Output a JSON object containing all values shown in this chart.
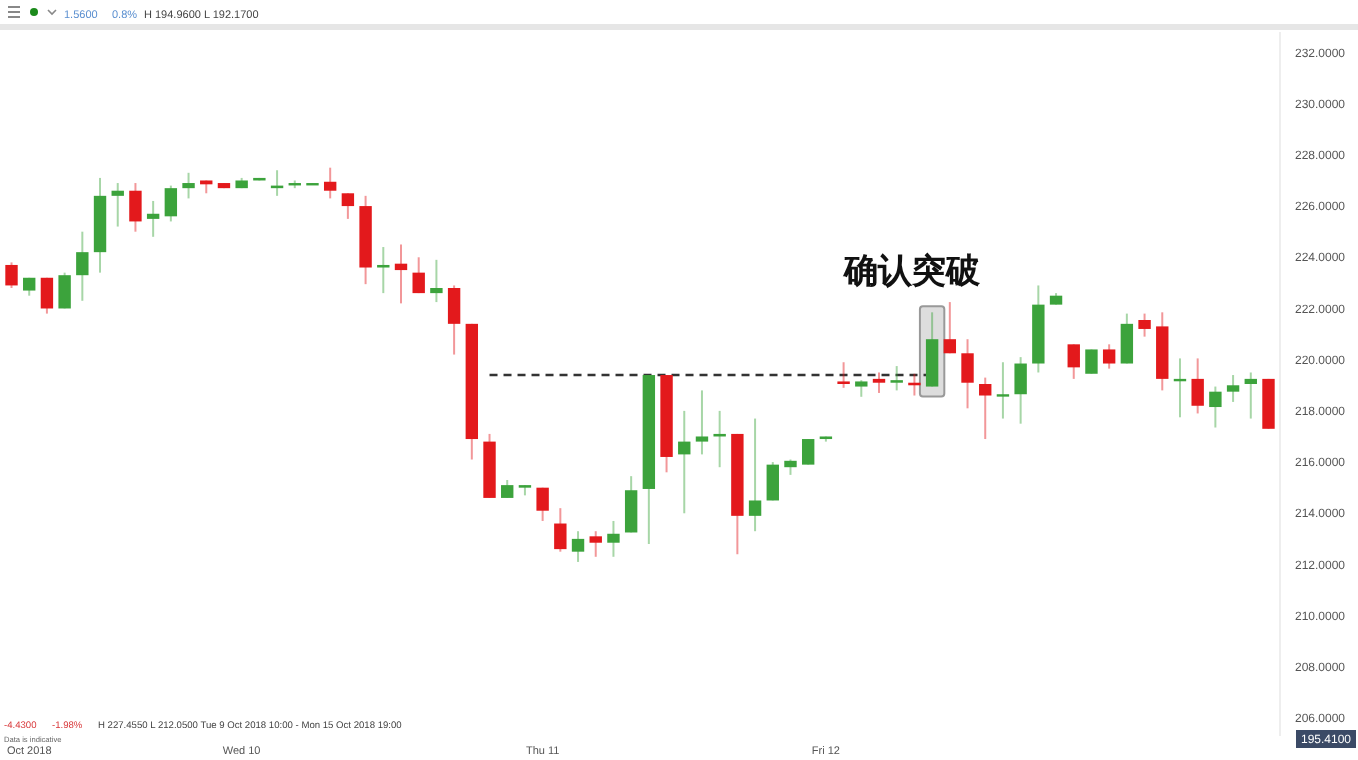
{
  "chart_data": {
    "type": "candlestick",
    "categories": [
      null,
      "Oct 2018",
      null,
      null,
      null,
      null,
      null,
      null,
      null,
      null,
      null,
      null,
      null,
      "Wed 10",
      null,
      null,
      null,
      null,
      null,
      null,
      null,
      null,
      null,
      null,
      null,
      null,
      null,
      null,
      null,
      null,
      "Thu 11",
      null,
      null,
      null,
      null,
      null,
      null,
      null,
      null,
      null,
      null,
      null,
      null,
      null,
      null,
      null,
      "Fri 12",
      null,
      null,
      null,
      null,
      null,
      null,
      null,
      null,
      null,
      null,
      null,
      null,
      null,
      null,
      null,
      null,
      null,
      null,
      null,
      null,
      null,
      null,
      null,
      null,
      null
    ],
    "ohlc": [
      [
        223.7,
        223.8,
        222.8,
        222.9
      ],
      [
        222.7,
        223.2,
        222.5,
        223.2
      ],
      [
        223.2,
        223.2,
        221.8,
        222.0
      ],
      [
        222.0,
        223.4,
        222.0,
        223.3
      ],
      [
        223.3,
        225.0,
        222.3,
        224.2
      ],
      [
        224.2,
        227.1,
        223.4,
        226.4
      ],
      [
        226.4,
        226.9,
        225.2,
        226.6
      ],
      [
        226.6,
        226.9,
        225.0,
        225.4
      ],
      [
        225.5,
        226.2,
        224.8,
        225.7
      ],
      [
        225.6,
        226.8,
        225.4,
        226.7
      ],
      [
        226.7,
        227.3,
        226.3,
        226.9
      ],
      [
        227.0,
        227.0,
        226.5,
        226.85
      ],
      [
        226.9,
        226.9,
        226.7,
        226.7
      ],
      [
        226.7,
        227.1,
        226.7,
        227.0
      ],
      [
        227.0,
        227.1,
        227.0,
        227.1
      ],
      [
        226.7,
        227.4,
        226.4,
        226.8
      ],
      [
        226.85,
        227.0,
        226.7,
        226.9
      ],
      [
        226.85,
        226.9,
        226.85,
        226.9
      ],
      [
        226.95,
        227.5,
        226.3,
        226.6
      ],
      [
        226.5,
        226.5,
        225.5,
        226.0
      ],
      [
        226.0,
        226.4,
        222.95,
        223.6
      ],
      [
        223.6,
        224.4,
        222.6,
        223.7
      ],
      [
        223.75,
        224.5,
        222.2,
        223.5
      ],
      [
        223.4,
        224.0,
        222.6,
        222.6
      ],
      [
        222.6,
        223.9,
        222.25,
        222.8
      ],
      [
        222.8,
        222.9,
        220.2,
        221.4
      ],
      [
        221.4,
        221.4,
        216.1,
        216.9
      ],
      [
        216.8,
        217.1,
        214.6,
        214.6
      ],
      [
        214.6,
        215.3,
        214.6,
        215.1
      ],
      [
        215.0,
        215.1,
        214.7,
        215.1
      ],
      [
        215.0,
        215.0,
        213.7,
        214.1
      ],
      [
        213.6,
        214.2,
        212.5,
        212.6
      ],
      [
        212.5,
        213.3,
        212.1,
        213.0
      ],
      [
        213.1,
        213.3,
        212.3,
        212.85
      ],
      [
        212.85,
        213.7,
        212.3,
        213.2
      ],
      [
        213.25,
        215.45,
        213.25,
        214.9
      ],
      [
        214.95,
        219.4,
        212.8,
        219.4
      ],
      [
        219.4,
        219.4,
        215.6,
        216.2
      ],
      [
        216.3,
        218.0,
        214.0,
        216.8
      ],
      [
        216.8,
        218.8,
        216.3,
        217.0
      ],
      [
        217.0,
        218.0,
        215.8,
        217.1
      ],
      [
        217.1,
        217.1,
        212.4,
        213.9
      ],
      [
        213.9,
        217.7,
        213.3,
        214.5
      ],
      [
        214.5,
        216.0,
        214.5,
        215.9
      ],
      [
        215.8,
        216.1,
        215.5,
        216.05
      ],
      [
        215.9,
        216.9,
        215.9,
        216.9
      ],
      [
        216.9,
        217.0,
        216.8,
        217.0
      ],
      [
        219.15,
        219.9,
        218.9,
        219.05
      ],
      [
        218.95,
        219.2,
        218.55,
        219.15
      ],
      [
        219.25,
        219.5,
        218.7,
        219.1
      ],
      [
        219.1,
        219.75,
        218.8,
        219.2
      ],
      [
        219.1,
        219.45,
        218.6,
        219.0
      ],
      [
        218.95,
        221.85,
        218.95,
        220.8
      ],
      [
        220.8,
        222.25,
        220.25,
        220.25
      ],
      [
        220.25,
        220.8,
        218.1,
        219.1
      ],
      [
        219.05,
        219.3,
        216.9,
        218.6
      ],
      [
        218.6,
        219.9,
        217.7,
        218.65
      ],
      [
        218.65,
        220.1,
        217.5,
        219.85
      ],
      [
        219.85,
        222.9,
        219.5,
        222.15
      ],
      [
        222.15,
        222.6,
        222.15,
        222.5
      ],
      [
        220.6,
        220.6,
        219.25,
        219.7
      ],
      [
        219.45,
        220.4,
        219.45,
        220.4
      ],
      [
        220.4,
        220.6,
        219.65,
        219.85
      ],
      [
        219.85,
        221.8,
        219.85,
        221.4
      ],
      [
        221.55,
        221.8,
        220.9,
        221.2
      ],
      [
        221.3,
        221.85,
        218.8,
        219.25
      ],
      [
        219.2,
        220.05,
        217.75,
        219.25
      ],
      [
        219.25,
        220.05,
        217.9,
        218.2
      ],
      [
        218.15,
        218.95,
        217.35,
        218.75
      ],
      [
        218.75,
        219.4,
        218.35,
        219.0
      ],
      [
        219.05,
        219.5,
        217.7,
        219.25
      ],
      [
        219.25,
        219.25,
        217.3,
        217.3
      ]
    ],
    "colors": [
      "#e3191c",
      "#3ca33c",
      "#e3191c",
      "#3ca33c",
      "#3ca33c",
      "#3ca33c",
      "#3ca33c",
      "#e3191c",
      "#3ca33c",
      "#3ca33c",
      "#3ca33c",
      "#e3191c",
      "#e3191c",
      "#3ca33c",
      "#3ca33c",
      "#3ca33c",
      "#3ca33c",
      "#3ca33c",
      "#e3191c",
      "#e3191c",
      "#e3191c",
      "#3ca33c",
      "#e3191c",
      "#e3191c",
      "#3ca33c",
      "#e3191c",
      "#e3191c",
      "#e3191c",
      "#3ca33c",
      "#3ca33c",
      "#e3191c",
      "#e3191c",
      "#3ca33c",
      "#e3191c",
      "#3ca33c",
      "#3ca33c",
      "#3ca33c",
      "#e3191c",
      "#3ca33c",
      "#3ca33c",
      "#3ca33c",
      "#e3191c",
      "#3ca33c",
      "#3ca33c",
      "#3ca33c",
      "#3ca33c",
      "#3ca33c",
      "#e3191c",
      "#3ca33c",
      "#e3191c",
      "#3ca33c",
      "#e3191c",
      "#3ca33c",
      "#e3191c",
      "#e3191c",
      "#e3191c",
      "#3ca33c",
      "#3ca33c",
      "#3ca33c",
      "#3ca33c",
      "#e3191c",
      "#3ca33c",
      "#e3191c",
      "#3ca33c",
      "#e3191c",
      "#e3191c",
      "#3ca33c",
      "#e3191c",
      "#3ca33c",
      "#3ca33c",
      "#3ca33c",
      "#e3191c"
    ],
    "series": [
      {
        "type": "line",
        "color": "#333333",
        "line_style": "dashed",
        "values": [
          null,
          null,
          null,
          null,
          null,
          null,
          null,
          null,
          null,
          null,
          null,
          null,
          null,
          null,
          null,
          null,
          null,
          null,
          null,
          null,
          null,
          null,
          null,
          null,
          null,
          null,
          null,
          219.4,
          219.4,
          219.4,
          219.4,
          219.4,
          219.4,
          219.4,
          219.4,
          219.4,
          219.4,
          219.4,
          219.4,
          219.4,
          219.4,
          219.4,
          219.4,
          219.4,
          219.4,
          219.4,
          219.4,
          219.4,
          219.4,
          219.4,
          219.4,
          219.4,
          219.4,
          null,
          null,
          null,
          null,
          null,
          null,
          null,
          null,
          null,
          null,
          null,
          null,
          null,
          null,
          null,
          null,
          null,
          null,
          null
        ]
      }
    ],
    "ylim": [
      205.3,
      232.8
    ],
    "yticks": [
      {
        "value": 206,
        "label": "206.0000"
      },
      {
        "value": 208,
        "label": "208.0000"
      },
      {
        "value": 210,
        "label": "210.0000"
      },
      {
        "value": 212,
        "label": "212.0000"
      },
      {
        "value": 214,
        "label": "214.0000"
      },
      {
        "value": 216,
        "label": "216.0000"
      },
      {
        "value": 218,
        "label": "218.0000"
      },
      {
        "value": 220,
        "label": "220.0000"
      },
      {
        "value": 222,
        "label": "222.0000"
      },
      {
        "value": 224,
        "label": "224.0000"
      },
      {
        "value": 226,
        "label": "226.0000"
      },
      {
        "value": 228,
        "label": "228.0000"
      },
      {
        "value": 230,
        "label": "230.0000"
      },
      {
        "value": 232,
        "label": "232.0000"
      }
    ],
    "annotations": [
      "1.5600",
      "0.8%",
      "H 194.9600  L 192.1700",
      "确认突破",
      "-4.4300",
      "-1.98%",
      "H 227.4550  L 212.0500  Tue 9 Oct 2018 10:00 - Mon 15 Oct 2018 19:00",
      "Data is indicative",
      "195.4100"
    ]
  }
}
